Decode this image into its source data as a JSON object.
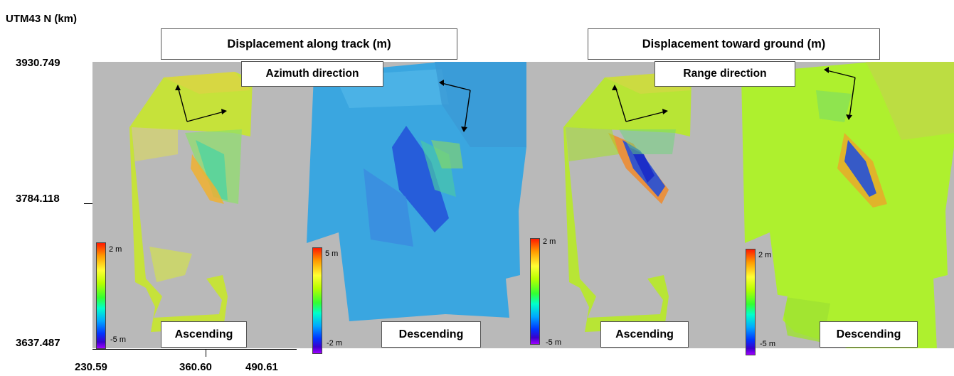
{
  "y_axis": {
    "title": "UTM43 N (km)",
    "ticks": [
      "3930.749",
      "3784.118",
      "3637.487"
    ]
  },
  "x_axis": {
    "ticks": [
      "230.59",
      "360.60",
      "490.61"
    ]
  },
  "groups": [
    {
      "title": "Displacement along track (m)",
      "direction": "Azimuth direction"
    },
    {
      "title": "Displacement toward ground (m)",
      "direction": "Range direction"
    }
  ],
  "panels": [
    {
      "orbit": "Ascending",
      "cbar_max": "2 m",
      "cbar_min": "-5 m",
      "base_color": "#c6e23a"
    },
    {
      "orbit": "Descending",
      "cbar_max": "5 m",
      "cbar_min": "-2 m",
      "base_color": "#3aa6e0"
    },
    {
      "orbit": "Ascending",
      "cbar_max": "2 m",
      "cbar_min": "-5 m",
      "base_color": "#b8e535"
    },
    {
      "orbit": "Descending",
      "cbar_max": "2 m",
      "cbar_min": "-5 m",
      "base_color": "#aef02e"
    }
  ],
  "colors": {
    "background_gray": "#b9b9b9",
    "cbar_top": "#ff1a00",
    "cbar_bottom": "#a000ff"
  }
}
